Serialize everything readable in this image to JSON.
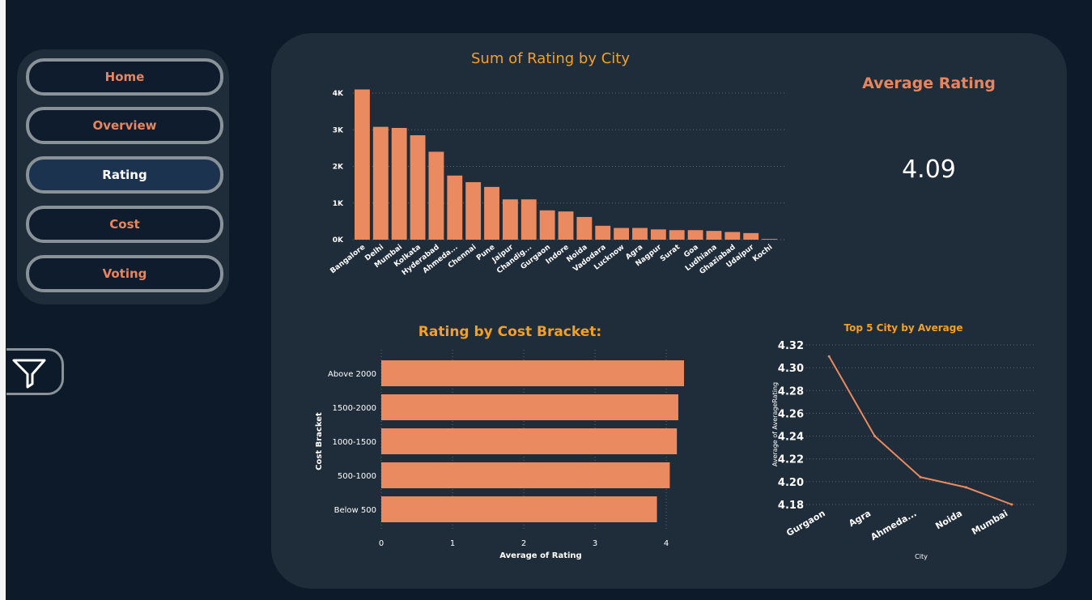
{
  "nav": {
    "items": [
      {
        "label": "Home",
        "active": false
      },
      {
        "label": "Overview",
        "active": false
      },
      {
        "label": "Rating",
        "active": true
      },
      {
        "label": "Cost",
        "active": false
      },
      {
        "label": "Voting",
        "active": false
      }
    ]
  },
  "filter": {
    "icon": "filter-icon"
  },
  "kpi": {
    "title": "Average Rating",
    "value": "4.09"
  },
  "colors": {
    "bar": "#e98a60",
    "title": "#f4a024",
    "kpi_title": "#e8855f",
    "panel": "#1f2c3a"
  },
  "chart_data": [
    {
      "type": "bar",
      "title": "Sum of Rating by City",
      "xlabel": "",
      "ylabel": "",
      "categories": [
        "Bangalore",
        "Delhi",
        "Mumbai",
        "Kolkata",
        "Hyderabad",
        "Ahmeda...",
        "Chennai",
        "Pune",
        "Jaipur",
        "Chandig...",
        "Gurgaon",
        "Indore",
        "Noida",
        "Vadodara",
        "Lucknow",
        "Agra",
        "Nagpur",
        "Surat",
        "Goa",
        "Ludhiana",
        "Ghaziabad",
        "Udaipur",
        "Kochi"
      ],
      "values": [
        4100,
        3080,
        3050,
        2850,
        2400,
        1750,
        1570,
        1440,
        1100,
        1100,
        800,
        770,
        620,
        380,
        320,
        320,
        280,
        260,
        260,
        240,
        210,
        180,
        20
      ],
      "ylim": [
        0,
        4000
      ],
      "yticks": [
        {
          "v": 0,
          "label": "0K"
        },
        {
          "v": 1000,
          "label": "1K"
        },
        {
          "v": 2000,
          "label": "2K"
        },
        {
          "v": 3000,
          "label": "3K"
        },
        {
          "v": 4000,
          "label": "4K"
        }
      ],
      "grid": true,
      "legend": "none"
    },
    {
      "type": "bar",
      "orientation": "horizontal",
      "title": "Rating by Cost Bracket:",
      "xlabel": "Average of Rating",
      "ylabel": "Cost Bracket",
      "categories": [
        "Above 2000",
        "1500-2000",
        "1000-1500",
        "500-1000",
        "Below 500"
      ],
      "values": [
        4.25,
        4.17,
        4.15,
        4.05,
        3.87
      ],
      "xlim": [
        0,
        4
      ],
      "xticks": [
        0,
        1,
        2,
        3,
        4
      ],
      "grid": true,
      "legend": "none"
    },
    {
      "type": "line",
      "title": "Top 5 City by Average",
      "xlabel": "City",
      "ylabel": "Average of AverageRating",
      "categories": [
        "Gurgaon",
        "Agra",
        "Ahmeda...",
        "Noida",
        "Mumbai"
      ],
      "values": [
        4.31,
        4.24,
        4.204,
        4.195,
        4.18
      ],
      "ylim": [
        4.18,
        4.32
      ],
      "yticks": [
        "4.18",
        "4.20",
        "4.22",
        "4.24",
        "4.26",
        "4.28",
        "4.30",
        "4.32"
      ],
      "grid": true,
      "legend": "none"
    }
  ]
}
